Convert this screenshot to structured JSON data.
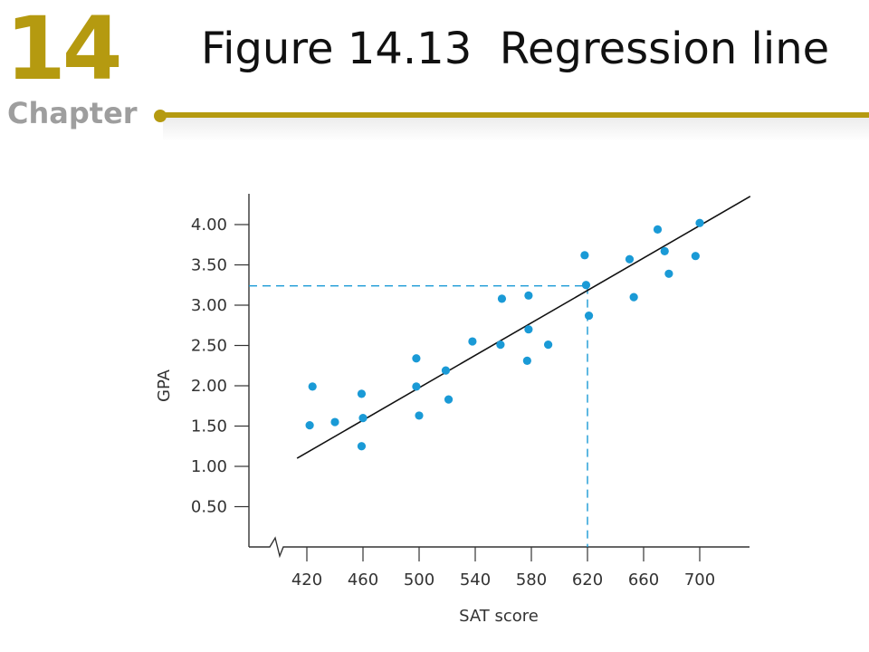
{
  "header": {
    "chapter_number": "14",
    "chapter_label": "Chapter",
    "title": "Figure 14.13  Regression line"
  },
  "colors": {
    "accent": "#b59a10",
    "chapter_label": "#9e9e9e",
    "points": "#1a9ad6",
    "guide": "#1a9ad6",
    "regression_line": "#111111"
  },
  "chart_data": {
    "type": "scatter",
    "title": "",
    "xlabel": "SAT score",
    "ylabel": "GPA",
    "xlim": [
      380,
      735
    ],
    "ylim": [
      0.2,
      4.2
    ],
    "xticks": [
      420,
      460,
      500,
      540,
      580,
      620,
      660,
      700
    ],
    "xtick_labels": [
      "420",
      "460",
      "500",
      "540",
      "580",
      "620",
      "660",
      "700"
    ],
    "yticks": [
      0.5,
      1.0,
      1.5,
      2.0,
      2.5,
      3.0,
      3.5,
      4.0
    ],
    "ytick_labels": [
      "0.50",
      "1.00",
      "1.50",
      "2.00",
      "2.50",
      "3.00",
      "3.50",
      "4.00"
    ],
    "x_axis_break": true,
    "grid": false,
    "points": [
      {
        "x": 422,
        "y": 1.51
      },
      {
        "x": 424,
        "y": 1.99
      },
      {
        "x": 440,
        "y": 1.55
      },
      {
        "x": 459,
        "y": 1.9
      },
      {
        "x": 460,
        "y": 1.6
      },
      {
        "x": 459,
        "y": 1.25
      },
      {
        "x": 498,
        "y": 2.34
      },
      {
        "x": 498,
        "y": 1.99
      },
      {
        "x": 500,
        "y": 1.63
      },
      {
        "x": 519,
        "y": 2.19
      },
      {
        "x": 521,
        "y": 1.83
      },
      {
        "x": 538,
        "y": 2.55
      },
      {
        "x": 559,
        "y": 3.08
      },
      {
        "x": 558,
        "y": 2.51
      },
      {
        "x": 578,
        "y": 3.12
      },
      {
        "x": 578,
        "y": 2.7
      },
      {
        "x": 577,
        "y": 2.31
      },
      {
        "x": 592,
        "y": 2.51
      },
      {
        "x": 618,
        "y": 3.62
      },
      {
        "x": 619,
        "y": 3.25
      },
      {
        "x": 621,
        "y": 2.87
      },
      {
        "x": 650,
        "y": 3.57
      },
      {
        "x": 653,
        "y": 3.1
      },
      {
        "x": 670,
        "y": 3.94
      },
      {
        "x": 675,
        "y": 3.67
      },
      {
        "x": 678,
        "y": 3.39
      },
      {
        "x": 697,
        "y": 3.61
      },
      {
        "x": 700,
        "y": 4.02
      }
    ],
    "regression_line": {
      "x": [
        413,
        736
      ],
      "y": [
        1.1,
        4.35
      ]
    },
    "guide": {
      "x": 620,
      "y": 3.24
    }
  }
}
